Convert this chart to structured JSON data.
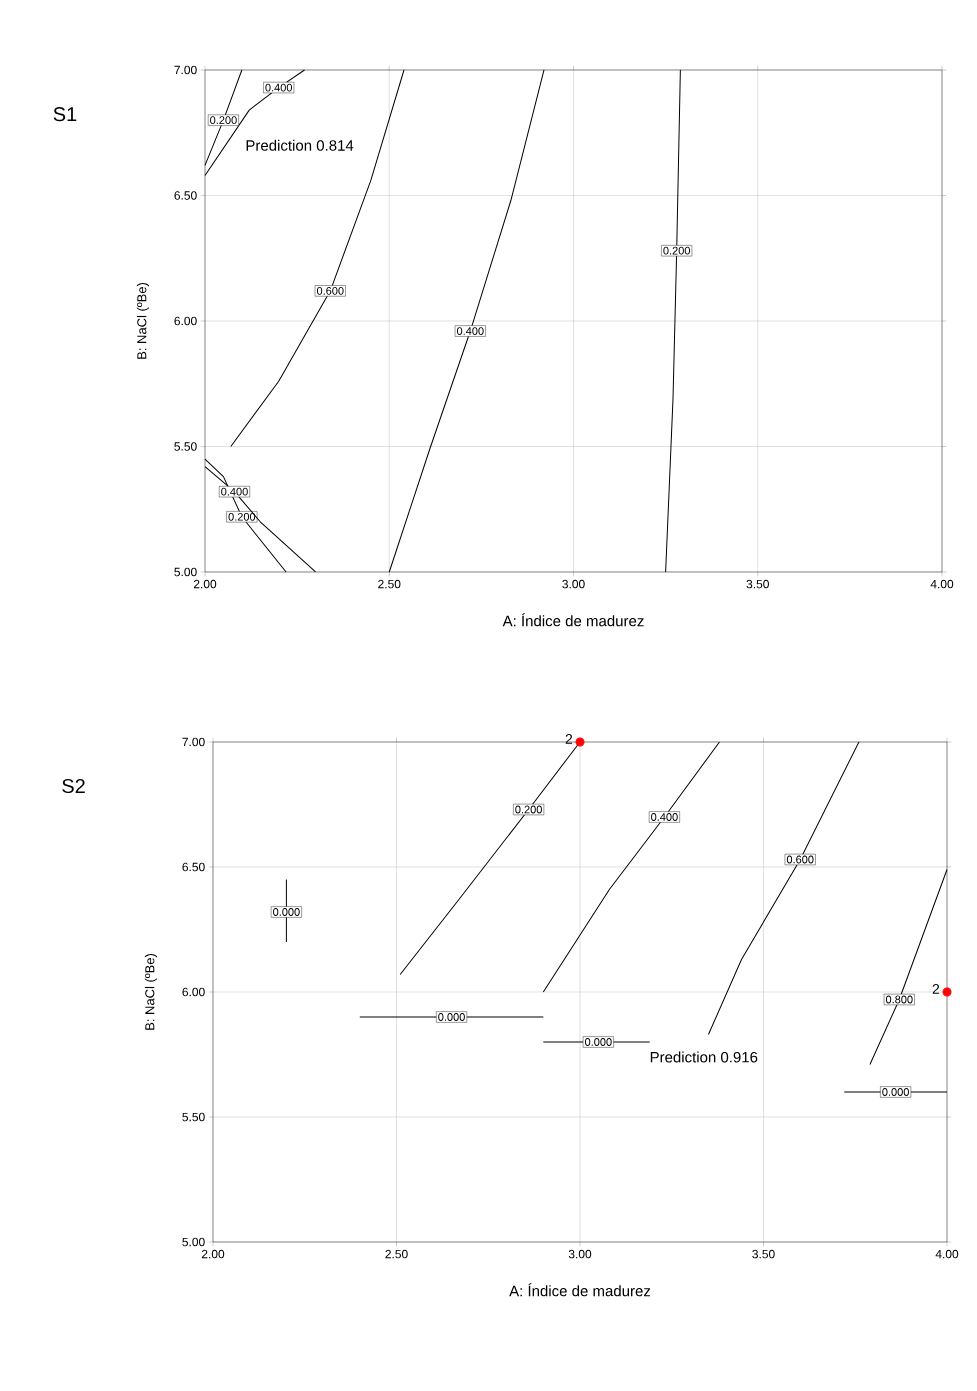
{
  "chart_data": [
    {
      "type": "line",
      "title": "S1",
      "xlabel": "A: Índice de madurez",
      "ylabel": "B: NaCl (ºBe)",
      "xlim": [
        2,
        4
      ],
      "ylim": [
        5,
        7
      ],
      "xticks": [
        {
          "value": 2,
          "label": "2.00"
        },
        {
          "value": 2.5,
          "label": "2.50"
        },
        {
          "value": 3,
          "label": "3.00"
        },
        {
          "value": 3.5,
          "label": "3.50"
        },
        {
          "value": 4,
          "label": "4.00"
        }
      ],
      "yticks": [
        {
          "value": 5,
          "label": "5.00"
        },
        {
          "value": 5.5,
          "label": "5.50"
        },
        {
          "value": 6,
          "label": "6.00"
        },
        {
          "value": 6.5,
          "label": "6.50"
        },
        {
          "value": 7,
          "label": "7.00"
        }
      ],
      "grid": true,
      "marker": "none",
      "line_style": "solid",
      "annotations": [
        "Prediction 0.814"
      ],
      "series": [
        {
          "name": "0.600",
          "color": "#000000",
          "x": [
            2.07,
            2.2,
            2.34,
            2.45,
            2.54
          ],
          "values": [
            5.5,
            5.76,
            6.12,
            6.56,
            7.0
          ]
        },
        {
          "name": "0.400",
          "color": "#000000",
          "x": [
            2.5,
            2.61,
            2.72,
            2.83,
            2.92
          ],
          "values": [
            5.0,
            5.49,
            5.96,
            6.48,
            7.0
          ]
        },
        {
          "name": "0.200",
          "color": "#000000",
          "x": [
            3.25,
            3.27,
            3.28,
            3.29
          ],
          "values": [
            5.0,
            5.69,
            6.28,
            7.0
          ]
        },
        {
          "name": "0.400",
          "color": "#000000",
          "x": [
            2.0,
            2.12,
            2.2,
            2.27
          ],
          "values": [
            6.58,
            6.84,
            6.93,
            7.0
          ]
        },
        {
          "name": "0.200",
          "color": "#000000",
          "x": [
            2.0,
            2.05,
            2.1
          ],
          "values": [
            6.62,
            6.8,
            7.0
          ]
        },
        {
          "name": "0.200",
          "color": "#000000",
          "x": [
            2.0,
            2.05,
            2.1,
            2.22
          ],
          "values": [
            5.45,
            5.38,
            5.22,
            5.0
          ]
        },
        {
          "name": "0.400",
          "color": "#000000",
          "x": [
            2.0,
            2.08,
            2.15,
            2.3
          ],
          "values": [
            5.42,
            5.32,
            5.2,
            5.0
          ]
        }
      ]
    },
    {
      "type": "line",
      "title": "S2",
      "xlabel": "A: Índice de madurez",
      "ylabel": "B: NaCl (ºBe)",
      "xlim": [
        2,
        4
      ],
      "ylim": [
        5,
        7
      ],
      "xticks": [
        {
          "value": 2,
          "label": "2.00"
        },
        {
          "value": 2.5,
          "label": "2.50"
        },
        {
          "value": 3,
          "label": "3.00"
        },
        {
          "value": 3.5,
          "label": "3.50"
        },
        {
          "value": 4,
          "label": "4.00"
        }
      ],
      "yticks": [
        {
          "value": 5,
          "label": "5.00"
        },
        {
          "value": 5.5,
          "label": "5.50"
        },
        {
          "value": 6,
          "label": "6.00"
        },
        {
          "value": 6.5,
          "label": "6.50"
        },
        {
          "value": 7,
          "label": "7.00"
        }
      ],
      "grid": true,
      "marker": "none",
      "line_style": "solid",
      "annotations": [
        "Prediction 0.916",
        {
          "text": "2",
          "x": 3.0,
          "y": 7.0
        },
        {
          "text": "2",
          "x": 4.0,
          "y": 6.0
        }
      ],
      "series": [
        {
          "name": "0.200",
          "color": "#000000",
          "x": [
            2.51,
            2.67,
            2.86,
            3.0
          ],
          "values": [
            6.07,
            6.37,
            6.73,
            7.0
          ]
        },
        {
          "name": "0.400",
          "color": "#000000",
          "x": [
            2.9,
            3.08,
            3.23,
            3.38
          ],
          "values": [
            6.0,
            6.41,
            6.7,
            7.0
          ]
        },
        {
          "name": "0.600",
          "color": "#000000",
          "x": [
            3.35,
            3.44,
            3.6,
            3.76
          ],
          "values": [
            5.83,
            6.13,
            6.53,
            7.0
          ]
        },
        {
          "name": "0.800",
          "color": "#000000",
          "x": [
            3.79,
            3.87,
            4.0
          ],
          "values": [
            5.71,
            5.97,
            6.49
          ]
        },
        {
          "name": "0.000",
          "color": "#000000",
          "x": [
            2.2,
            2.2,
            2.2
          ],
          "values": [
            6.2,
            6.32,
            6.45
          ]
        },
        {
          "name": "0.000",
          "color": "#000000",
          "x": [
            2.4,
            2.65,
            2.9
          ],
          "values": [
            5.9,
            5.9,
            5.9
          ]
        },
        {
          "name": "0.000",
          "color": "#000000",
          "x": [
            2.9,
            3.05,
            3.19
          ],
          "values": [
            5.8,
            5.8,
            5.8
          ]
        },
        {
          "name": "0.000",
          "color": "#000000",
          "x": [
            3.72,
            3.86,
            4.0
          ],
          "values": [
            5.6,
            5.6,
            5.6
          ]
        },
        {
          "type": "scatter",
          "color": "#ff0000",
          "marker": "circle",
          "x": [
            3.0,
            4.0
          ],
          "values": [
            7.0,
            6.0
          ]
        }
      ]
    }
  ]
}
